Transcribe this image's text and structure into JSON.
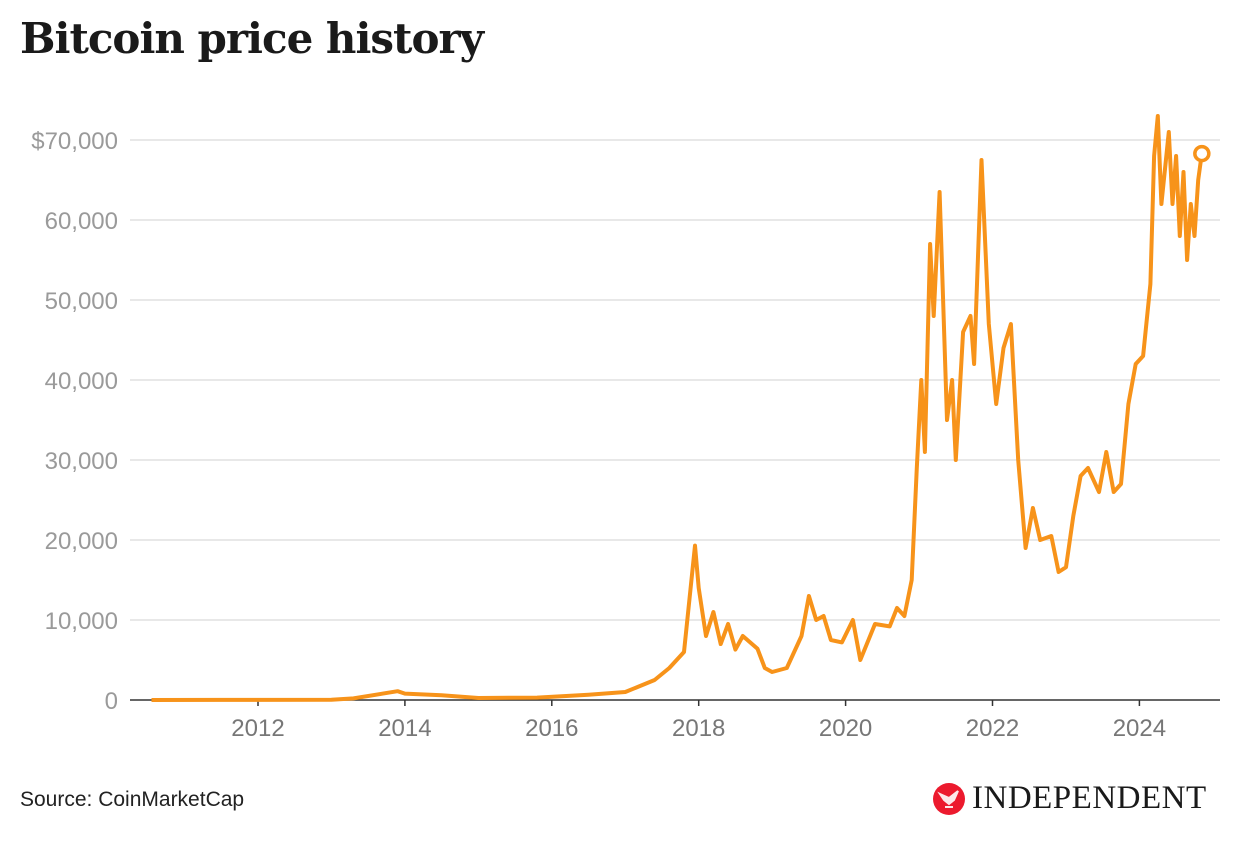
{
  "chart_data": {
    "type": "line",
    "title": "Bitcoin price history",
    "xlabel": "",
    "ylabel": "",
    "xlim": [
      2010.3,
      2025.2
    ],
    "ylim": [
      0,
      70000
    ],
    "grid": true,
    "line_color": "#f7931a",
    "x_ticks": [
      2012,
      2014,
      2016,
      2018,
      2020,
      2022,
      2024
    ],
    "x_tick_labels": [
      "2012",
      "2014",
      "2016",
      "2018",
      "2020",
      "2022",
      "2024"
    ],
    "y_ticks": [
      0,
      10000,
      20000,
      30000,
      40000,
      50000,
      60000,
      70000
    ],
    "y_tick_labels": [
      "0",
      "10,000",
      "20,000",
      "30,000",
      "40,000",
      "50,000",
      "60,000",
      "$70,000"
    ],
    "series": [
      {
        "x": [
          2010.55,
          2011.5,
          2013.0,
          2013.3,
          2013.9,
          2014.0,
          2014.5,
          2015.0,
          2015.8,
          2016.5,
          2017.0,
          2017.4,
          2017.6,
          2017.8,
          2017.95,
          2018.0,
          2018.1,
          2018.2,
          2018.3,
          2018.4,
          2018.5,
          2018.6,
          2018.8,
          2018.9,
          2019.0,
          2019.2,
          2019.4,
          2019.5,
          2019.6,
          2019.7,
          2019.8,
          2019.95,
          2020.1,
          2020.2,
          2020.4,
          2020.6,
          2020.7,
          2020.8,
          2020.9,
          2020.97,
          2021.03,
          2021.08,
          2021.15,
          2021.2,
          2021.28,
          2021.38,
          2021.45,
          2021.5,
          2021.6,
          2021.7,
          2021.75,
          2021.85,
          2021.95,
          2022.05,
          2022.15,
          2022.25,
          2022.35,
          2022.45,
          2022.55,
          2022.65,
          2022.8,
          2022.9,
          2023.0,
          2023.1,
          2023.2,
          2023.3,
          2023.45,
          2023.55,
          2023.65,
          2023.75,
          2023.85,
          2023.95,
          2024.05,
          2024.15,
          2024.2,
          2024.25,
          2024.3,
          2024.4,
          2024.45,
          2024.5,
          2024.55,
          2024.6,
          2024.65,
          2024.7,
          2024.75,
          2024.8,
          2024.85
        ],
        "y": [
          0.1,
          15,
          20,
          200,
          1100,
          800,
          600,
          250,
          300,
          650,
          1000,
          2500,
          4000,
          6000,
          19300,
          14000,
          8000,
          11000,
          7000,
          9500,
          6300,
          8000,
          6400,
          4000,
          3500,
          4000,
          8000,
          13000,
          10000,
          10500,
          7500,
          7200,
          10000,
          5000,
          9500,
          9200,
          11500,
          10500,
          15000,
          29000,
          40000,
          31000,
          57000,
          48000,
          63500,
          35000,
          40000,
          30000,
          46000,
          48000,
          42000,
          67500,
          47000,
          37000,
          44000,
          47000,
          30000,
          19000,
          24000,
          20000,
          20500,
          16000,
          16600,
          23000,
          28000,
          29000,
          26000,
          31000,
          26000,
          27000,
          37000,
          42000,
          43000,
          52000,
          68000,
          73000,
          62000,
          71000,
          62000,
          68000,
          58000,
          66000,
          55000,
          62000,
          58000,
          65000,
          68300
        ]
      }
    ]
  },
  "source": "Source: CoinMarketCap",
  "logo": {
    "text": "INDEPENDENT",
    "color": "#ec1a2e"
  }
}
